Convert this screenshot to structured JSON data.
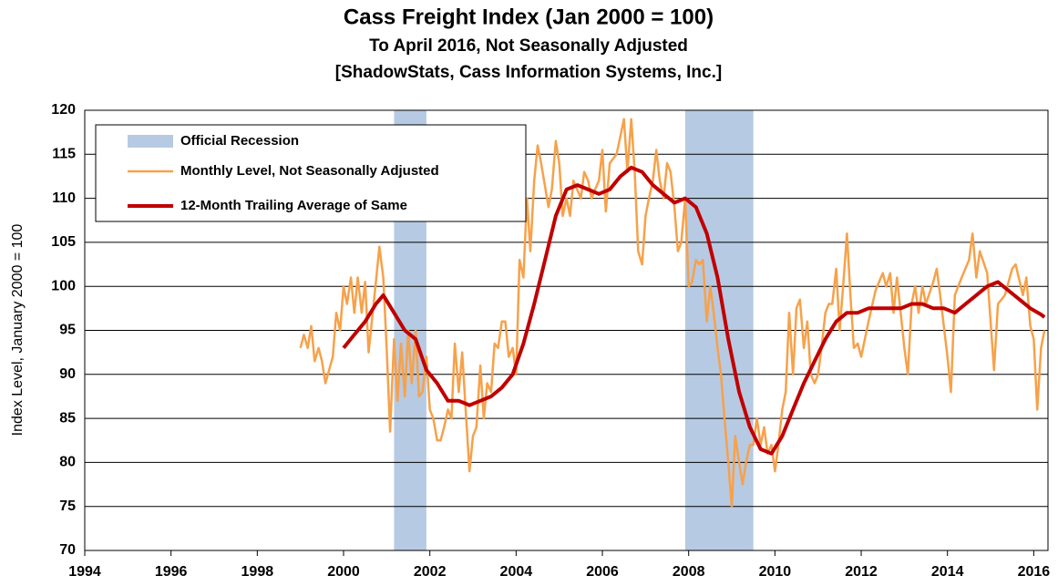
{
  "chart_data": {
    "type": "line",
    "title": "Cass Freight Index (Jan 2000 = 100)",
    "subtitle": "To April 2016, Not Seasonally Adjusted",
    "source": "[ShadowStats, Cass Information Systems, Inc.]",
    "y_label": "Index Level, January 2000 = 100",
    "xlim": [
      1994,
      2016.33
    ],
    "xticks": [
      1994,
      1996,
      1998,
      2000,
      2002,
      2004,
      2006,
      2008,
      2010,
      2012,
      2014,
      2016
    ],
    "ylim": [
      70,
      120
    ],
    "yticks": [
      70,
      75,
      80,
      85,
      90,
      95,
      100,
      105,
      110,
      115,
      120
    ],
    "grid": true,
    "legend": "upper left",
    "recession_name": "Official Recession",
    "recession_color": "#b7cae3",
    "recessions": [
      [
        2001.17,
        2001.92
      ],
      [
        2007.92,
        2009.5
      ]
    ],
    "series": [
      {
        "name": "Monthly Level, Not Seasonally Adjusted",
        "color": "#f7a14a",
        "width": 2.5,
        "x": [
          1999.0,
          1999.08,
          1999.17,
          1999.25,
          1999.33,
          1999.42,
          1999.5,
          1999.58,
          1999.75,
          1999.83,
          1999.92,
          2000.0,
          2000.08,
          2000.17,
          2000.25,
          2000.33,
          2000.42,
          2000.5,
          2000.58,
          2000.75,
          2000.83,
          2000.92,
          2001.0,
          2001.08,
          2001.17,
          2001.25,
          2001.33,
          2001.42,
          2001.5,
          2001.58,
          2001.67,
          2001.75,
          2001.83,
          2001.92,
          2002.0,
          2002.08,
          2002.17,
          2002.25,
          2002.33,
          2002.42,
          2002.5,
          2002.58,
          2002.67,
          2002.75,
          2002.83,
          2002.92,
          2003.0,
          2003.08,
          2003.17,
          2003.25,
          2003.33,
          2003.42,
          2003.5,
          2003.58,
          2003.67,
          2003.75,
          2003.83,
          2003.92,
          2004.0,
          2004.08,
          2004.17,
          2004.25,
          2004.33,
          2004.42,
          2004.5,
          2004.58,
          2004.75,
          2004.83,
          2004.92,
          2005.0,
          2005.08,
          2005.17,
          2005.25,
          2005.33,
          2005.5,
          2005.58,
          2005.67,
          2005.75,
          2005.83,
          2005.92,
          2006.0,
          2006.08,
          2006.17,
          2006.33,
          2006.5,
          2006.58,
          2006.67,
          2006.75,
          2006.83,
          2006.92,
          2007.0,
          2007.08,
          2007.17,
          2007.25,
          2007.33,
          2007.42,
          2007.5,
          2007.58,
          2007.67,
          2007.75,
          2007.83,
          2007.92,
          2008.0,
          2008.08,
          2008.17,
          2008.25,
          2008.33,
          2008.42,
          2008.5,
          2008.58,
          2008.67,
          2008.75,
          2008.83,
          2008.92,
          2009.0,
          2009.08,
          2009.17,
          2009.25,
          2009.33,
          2009.42,
          2009.5,
          2009.58,
          2009.67,
          2009.75,
          2009.83,
          2009.92,
          2010.0,
          2010.08,
          2010.17,
          2010.25,
          2010.33,
          2010.42,
          2010.5,
          2010.58,
          2010.67,
          2010.75,
          2010.83,
          2010.92,
          2011.0,
          2011.08,
          2011.17,
          2011.25,
          2011.33,
          2011.42,
          2011.5,
          2011.58,
          2011.67,
          2011.75,
          2011.83,
          2011.92,
          2012.0,
          2012.17,
          2012.33,
          2012.5,
          2012.58,
          2012.67,
          2012.75,
          2012.83,
          2013.0,
          2013.08,
          2013.17,
          2013.25,
          2013.33,
          2013.42,
          2013.5,
          2013.67,
          2013.75,
          2013.83,
          2014.0,
          2014.08,
          2014.17,
          2014.33,
          2014.5,
          2014.58,
          2014.67,
          2014.75,
          2014.92,
          2015.0,
          2015.08,
          2015.17,
          2015.33,
          2015.5,
          2015.58,
          2015.75,
          2015.83,
          2015.92,
          2016.0,
          2016.08,
          2016.17,
          2016.25
        ],
        "values": [
          93,
          94.5,
          93,
          95.5,
          91.5,
          93,
          91.5,
          89,
          92,
          97,
          95,
          100,
          98,
          101,
          97,
          101,
          97,
          100.5,
          92.5,
          100.5,
          104.5,
          101,
          93,
          83.5,
          94,
          87,
          93.5,
          87.5,
          95,
          89,
          95,
          87.5,
          88,
          92,
          86,
          85,
          82.5,
          82.5,
          84,
          86,
          85,
          93.5,
          88,
          92.5,
          86,
          79,
          83,
          84,
          91,
          85,
          89,
          88,
          93.5,
          93,
          96,
          96,
          92,
          93,
          90,
          103,
          101,
          110,
          104,
          112,
          116,
          114,
          109,
          111,
          116.5,
          114,
          108,
          110,
          108,
          112,
          110,
          113,
          112,
          110,
          111,
          112,
          115.5,
          108.5,
          114,
          115,
          119,
          113,
          119,
          113,
          104,
          102.5,
          108,
          110,
          112,
          115.5,
          112,
          110,
          114,
          113,
          109,
          104,
          105,
          110,
          100,
          100.5,
          103,
          102.5,
          103,
          96,
          100,
          97,
          93,
          90,
          85,
          80,
          75,
          83,
          80,
          77.5,
          80,
          82,
          82,
          85,
          82,
          84,
          81,
          82,
          79,
          82,
          86,
          88,
          97,
          90,
          97.5,
          98.5,
          93,
          96,
          90,
          89,
          90,
          93,
          97,
          98,
          98,
          102,
          95,
          100,
          106,
          99,
          93,
          93.5,
          92,
          96,
          99.5,
          101.5,
          100,
          101.5,
          97,
          101,
          93,
          90,
          98,
          100,
          97,
          100,
          98,
          100.5,
          102,
          99,
          92,
          88,
          99,
          101,
          103,
          106,
          101,
          104,
          101.5,
          96,
          90.5,
          98,
          99,
          102,
          102.5,
          99,
          101,
          95.5,
          94,
          86,
          93,
          95
        ]
      },
      {
        "name": "12-Month Trailing Average of Same",
        "color": "#c00000",
        "width": 4,
        "x": [
          2000.0,
          2000.25,
          2000.5,
          2000.75,
          2000.92,
          2001.17,
          2001.42,
          2001.67,
          2001.92,
          2002.17,
          2002.42,
          2002.67,
          2002.92,
          2003.17,
          2003.42,
          2003.67,
          2003.92,
          2004.17,
          2004.42,
          2004.67,
          2004.92,
          2005.17,
          2005.42,
          2005.67,
          2005.92,
          2006.17,
          2006.42,
          2006.67,
          2006.92,
          2007.17,
          2007.42,
          2007.67,
          2007.92,
          2008.17,
          2008.42,
          2008.67,
          2008.92,
          2009.17,
          2009.42,
          2009.67,
          2009.92,
          2010.17,
          2010.42,
          2010.67,
          2010.92,
          2011.17,
          2011.42,
          2011.67,
          2011.92,
          2012.17,
          2012.42,
          2012.67,
          2012.92,
          2013.17,
          2013.42,
          2013.67,
          2013.92,
          2014.17,
          2014.42,
          2014.67,
          2014.92,
          2015.17,
          2015.42,
          2015.67,
          2015.92,
          2016.17,
          2016.25
        ],
        "values": [
          93,
          94.5,
          96,
          98,
          99,
          97,
          95,
          94,
          90.5,
          89,
          87,
          87,
          86.5,
          87,
          87.5,
          88.5,
          90,
          93.5,
          98,
          103,
          108,
          111,
          111.5,
          111,
          110.5,
          111,
          112.5,
          113.5,
          113,
          111.5,
          110.5,
          109.5,
          110,
          109,
          106,
          101,
          94,
          88,
          84,
          81.5,
          81,
          83,
          86,
          89,
          91.5,
          94,
          96,
          97,
          97,
          97.5,
          97.5,
          97.5,
          97.5,
          98,
          98,
          97.5,
          97.5,
          97,
          98,
          99,
          100,
          100.5,
          99.5,
          98.5,
          97.5,
          96.8,
          96.5
        ]
      }
    ]
  }
}
